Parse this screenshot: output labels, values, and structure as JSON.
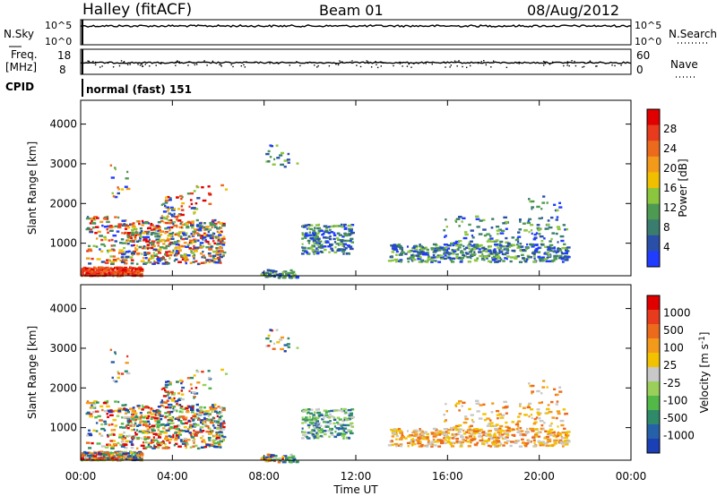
{
  "header": {
    "site": "Halley (fitACF)",
    "beam": "Beam 01",
    "date": "08/Aug/2012"
  },
  "noise_panel": {
    "left_label": "N.Sky",
    "right_label": "N.Search",
    "left_ticks": [
      "10^5",
      "10^0"
    ],
    "right_ticks": [
      "10^5",
      "10^0"
    ]
  },
  "freq_panel": {
    "left_label_line1": "Freq.",
    "left_label_line2": "[MHz]",
    "right_label": "Nave",
    "left_ticks": [
      "18",
      "8"
    ],
    "right_ticks": [
      "60",
      "0"
    ]
  },
  "cpid": {
    "label": "CPID",
    "text": "normal (fast) 151"
  },
  "x_axis": {
    "label": "Time UT",
    "ticks": [
      "00:00",
      "04:00",
      "08:00",
      "12:00",
      "16:00",
      "20:00",
      "00:00"
    ],
    "range_hours": [
      0,
      24
    ]
  },
  "power_colorbar": {
    "label": "Power [dB]",
    "ticks": [
      "4",
      "8",
      "12",
      "16",
      "20",
      "24",
      "28"
    ],
    "colors": [
      "#1f3cff",
      "#2a4fa8",
      "#3a7d6e",
      "#4f9a52",
      "#8cc63e",
      "#f0c000",
      "#f39a1a",
      "#ec6a1c",
      "#e83a1c",
      "#e00000"
    ]
  },
  "velocity_colorbar": {
    "label": "Velocity [m s^-1]",
    "ticks": [
      "1000",
      "500",
      "100",
      "25",
      "-25",
      "-100",
      "-500",
      "-1000"
    ],
    "colors": [
      "#1b3fb5",
      "#2660a8",
      "#2f8a6a",
      "#52b848",
      "#9ad05a",
      "#c8c8c8",
      "#f2c200",
      "#f39a1a",
      "#ec6a1c",
      "#e83a1c",
      "#e00000"
    ]
  },
  "chart_data": [
    {
      "type": "line",
      "title": "",
      "series": [
        {
          "name": "N.Sky",
          "description_level": "steady near top of log scale"
        }
      ]
    },
    {
      "type": "heatmap",
      "ylabel": "Slant Range [km]",
      "xlabel": "Time UT",
      "xlim": [
        0,
        24
      ],
      "ylim": [
        180,
        4600
      ],
      "yticks": [
        1000,
        2000,
        3000,
        4000
      ],
      "colorbar": "Power [dB]",
      "clim": [
        0,
        32
      ]
    },
    {
      "type": "heatmap",
      "ylabel": "Slant Range [km]",
      "xlabel": "Time UT",
      "xlim": [
        0,
        24
      ],
      "ylim": [
        180,
        4600
      ],
      "yticks": [
        1000,
        2000,
        3000,
        4000
      ],
      "colorbar": "Velocity [m s^-1]"
    }
  ]
}
